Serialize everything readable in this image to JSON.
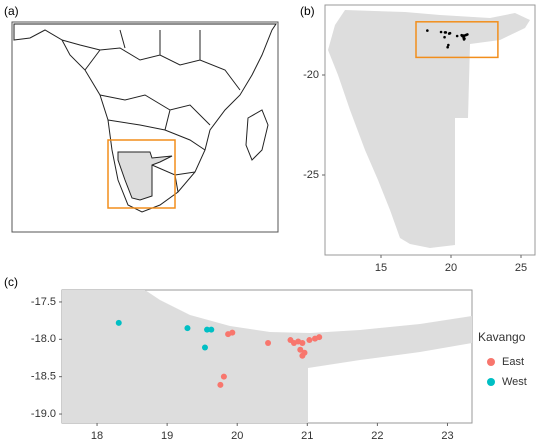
{
  "panel_a": {
    "label": "(a)"
  },
  "panel_b": {
    "label": "(b)",
    "type": "map",
    "xlim": [
      11,
      26
    ],
    "ylim": [
      -29,
      -16.5
    ],
    "xticks": [
      15,
      20,
      25
    ],
    "yticks": [
      -20,
      -25
    ],
    "box_color": "#f28e1c",
    "point_color": "#000000"
  },
  "panel_c": {
    "label": "(c)",
    "type": "scatter",
    "xlim": [
      17.5,
      23.35
    ],
    "ylim": [
      -19.12,
      -17.34
    ],
    "xticks": [
      18,
      19,
      20,
      21,
      22,
      23
    ],
    "yticks": [
      -17.5,
      {
        "value": -18,
        "label": "-18.0"
      },
      -18.5,
      {
        "value": -19,
        "label": "-19.0"
      }
    ],
    "legend_title": "Kavango",
    "series": [
      {
        "name": "East",
        "color": "#f8766d",
        "x": [
          19.93,
          19.87,
          20.44,
          20.76,
          20.81,
          20.87,
          20.93,
          20.9,
          20.96,
          20.93,
          21.03,
          21.11,
          21.17,
          19.81,
          19.76
        ],
        "y": [
          -17.91,
          -17.93,
          -18.05,
          -18.01,
          -18.05,
          -18.03,
          -18.05,
          -18.14,
          -18.18,
          -18.22,
          -18.01,
          -17.99,
          -17.97,
          -18.5,
          -18.61
        ]
      },
      {
        "name": "West",
        "color": "#00bfc4",
        "x": [
          18.31,
          19.29,
          19.57,
          19.63,
          19.54
        ],
        "y": [
          -17.78,
          -17.85,
          -17.87,
          -17.87,
          -18.11
        ]
      }
    ]
  }
}
